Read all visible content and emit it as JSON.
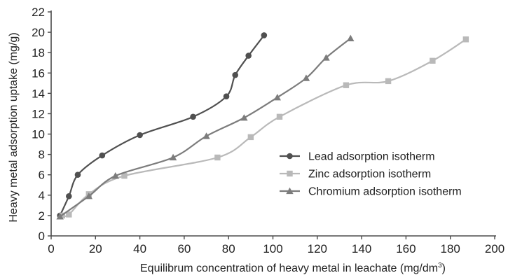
{
  "chart_data": {
    "type": "line",
    "title": "",
    "xlabel": "Equilibrum concentration of heavy metal in leachate (mg/dm",
    "xlabel_superscript": "3",
    "xlabel_suffix": ")",
    "ylabel": "Heavy metal adsorption uptake (mg/g)",
    "xlim": [
      0,
      200
    ],
    "ylim": [
      0,
      22
    ],
    "x_ticks": [
      "0",
      "20",
      "40",
      "60",
      "80",
      "100",
      "120",
      "140",
      "160",
      "180",
      "200"
    ],
    "y_ticks": [
      "0",
      "2",
      "4",
      "6",
      "8",
      "10",
      "12",
      "14",
      "16",
      "18",
      "20",
      "22"
    ],
    "grid": false,
    "legend_position": "right",
    "series": [
      {
        "name": "Lead adsorption isotherm",
        "color": "#505050",
        "marker": "circle",
        "x": [
          4,
          8,
          12,
          23,
          40,
          64,
          79,
          83,
          89,
          96
        ],
        "y": [
          2,
          3.9,
          6,
          7.9,
          9.9,
          11.7,
          13.7,
          15.8,
          17.7,
          19.7
        ]
      },
      {
        "name": "Zinc adsorption isotherm",
        "color": "#b9b9b9",
        "marker": "square",
        "x": [
          5,
          8,
          17,
          33,
          75,
          90,
          103,
          133,
          152,
          172,
          187
        ],
        "y": [
          2,
          2.1,
          4.1,
          5.9,
          7.7,
          9.7,
          11.7,
          14.8,
          15.2,
          17.2,
          19.3
        ]
      },
      {
        "name": "Chromium adsorption isotherm",
        "color": "#7c7c7c",
        "marker": "triangle",
        "x": [
          4,
          17,
          29,
          55,
          70,
          87,
          102,
          115,
          124,
          135
        ],
        "y": [
          1.9,
          3.9,
          5.9,
          7.7,
          9.8,
          11.6,
          13.6,
          15.5,
          17.5,
          19.4
        ]
      }
    ]
  }
}
